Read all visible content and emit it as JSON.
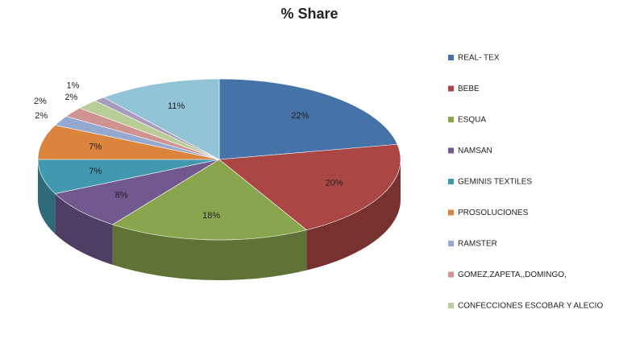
{
  "chart_data": {
    "type": "pie",
    "title": "% Share",
    "categories": [
      "REAL- TEX",
      "BEBE",
      "ESQUA",
      "NAMSAN",
      "GEMINIS  TEXTILES",
      "PROSOLUCIONES",
      "RAMSTER",
      "GOMEZ,ZAPETA,,DOMINGO,",
      "CONFECCIONES  ESCOBAR Y ALECIO",
      null,
      null
    ],
    "values": [
      22,
      20,
      18,
      8,
      7,
      7,
      2,
      2,
      2,
      1,
      11
    ],
    "value_labels": [
      "22%",
      "20%",
      "18%",
      "8%",
      "7%",
      "7%",
      "2%",
      "2%",
      "2%",
      "1%",
      "11%"
    ],
    "colors": [
      "#4572a7",
      "#aa4643",
      "#89a54e",
      "#71588f",
      "#4198af",
      "#db843d",
      "#93a9cf",
      "#d19392",
      "#b9cd96",
      "#a99bbd",
      "#93c3d6"
    ],
    "legend": "right"
  }
}
